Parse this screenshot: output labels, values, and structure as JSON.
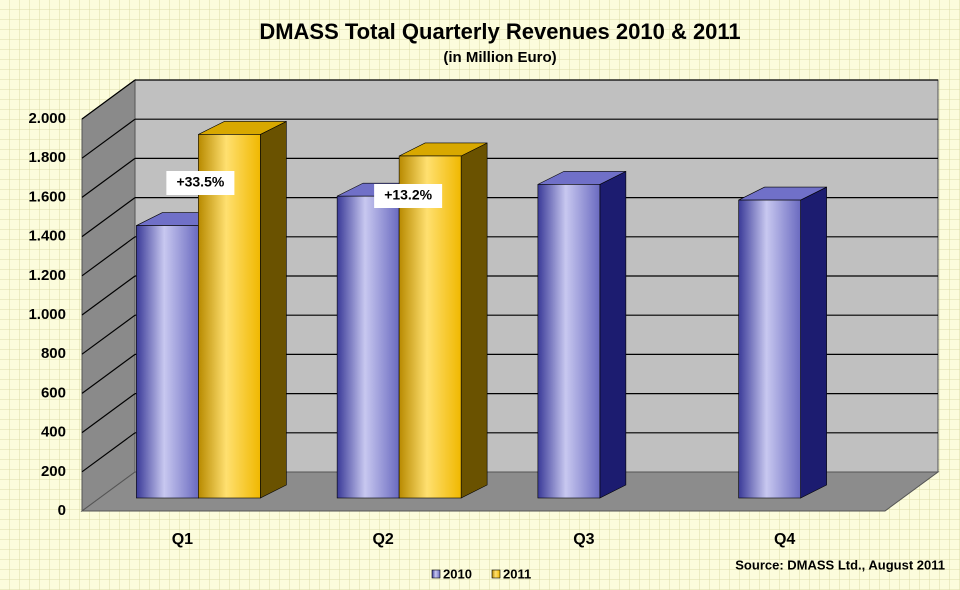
{
  "chart_data": {
    "type": "bar",
    "title": "DMASS Total Quarterly Revenues 2010 & 2011",
    "subtitle": "(in Million Euro)",
    "categories": [
      "Q1",
      "Q2",
      "Q3",
      "Q4"
    ],
    "series": [
      {
        "name": "2010",
        "color": "#5a5ab8",
        "values": [
          1390,
          1540,
          1600,
          1520
        ]
      },
      {
        "name": "2011",
        "color": "#f0c020",
        "values": [
          1855,
          1745,
          null,
          null
        ]
      }
    ],
    "annotations": [
      "+33.5%",
      "+13.2%"
    ],
    "ylim": [
      0,
      2000
    ],
    "yticks": [
      0,
      200,
      400,
      600,
      800,
      {
        "value": 1000,
        "label": "1.000"
      },
      {
        "value": 1200,
        "label": "1.200"
      },
      {
        "value": 1400,
        "label": "1.400"
      },
      {
        "value": 1600,
        "label": "1.600"
      },
      {
        "value": 1800,
        "label": "1.800"
      },
      {
        "value": 2000,
        "label": "2.000"
      }
    ],
    "grid": true,
    "source": "Source: DMASS Ltd., August 2011"
  }
}
